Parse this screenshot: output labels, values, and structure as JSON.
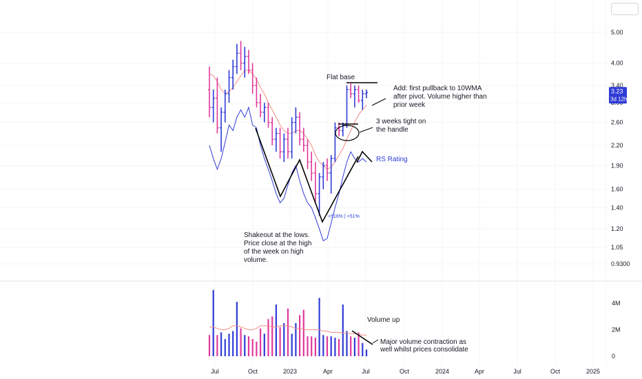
{
  "chart_data": [
    {
      "type": "candlestick",
      "title": "",
      "xlabel": "",
      "ylabel": "",
      "scale": "log",
      "ylim": [
        0.9,
        5.4
      ],
      "y_ticks": [
        "5.00",
        "4.00",
        "3.40",
        "3.00",
        "2.60",
        "2.20",
        "1.90",
        "1.60",
        "1.40",
        "1.20",
        "1.05",
        "0.9300"
      ],
      "x_ticks": [
        "Jul",
        "Oct",
        "2023",
        "Apr",
        "Jul",
        "Oct",
        "2024",
        "Apr",
        "Jul",
        "Oct",
        "2025"
      ],
      "last_price": {
        "value": "3.23",
        "countdown": "3d 12h",
        "color": "#2f3bd6"
      },
      "candles": [
        {
          "o": 3.3,
          "h": 3.9,
          "l": 2.7,
          "c": 2.9
        },
        {
          "o": 2.9,
          "h": 3.3,
          "l": 2.6,
          "c": 3.1
        },
        {
          "o": 3.1,
          "h": 3.6,
          "l": 2.4,
          "c": 2.5
        },
        {
          "o": 2.5,
          "h": 2.9,
          "l": 2.1,
          "c": 2.8
        },
        {
          "o": 2.8,
          "h": 3.3,
          "l": 2.6,
          "c": 3.2
        },
        {
          "o": 3.2,
          "h": 3.8,
          "l": 3.0,
          "c": 3.6
        },
        {
          "o": 3.6,
          "h": 4.1,
          "l": 3.3,
          "c": 3.9
        },
        {
          "o": 3.9,
          "h": 4.6,
          "l": 3.7,
          "c": 4.3
        },
        {
          "o": 4.3,
          "h": 4.7,
          "l": 3.8,
          "c": 4.0
        },
        {
          "o": 4.0,
          "h": 4.5,
          "l": 3.6,
          "c": 4.2
        },
        {
          "o": 4.2,
          "h": 4.4,
          "l": 3.7,
          "c": 3.8
        },
        {
          "o": 3.8,
          "h": 4.0,
          "l": 3.2,
          "c": 3.4
        },
        {
          "o": 3.4,
          "h": 3.6,
          "l": 2.9,
          "c": 3.0
        },
        {
          "o": 3.0,
          "h": 3.2,
          "l": 2.7,
          "c": 2.8
        },
        {
          "o": 2.8,
          "h": 3.0,
          "l": 2.6,
          "c": 2.9
        },
        {
          "o": 2.9,
          "h": 3.0,
          "l": 2.5,
          "c": 2.6
        },
        {
          "o": 2.6,
          "h": 2.7,
          "l": 2.2,
          "c": 2.3
        },
        {
          "o": 2.3,
          "h": 2.5,
          "l": 2.1,
          "c": 2.4
        },
        {
          "o": 2.4,
          "h": 2.5,
          "l": 2.0,
          "c": 2.1
        },
        {
          "o": 2.1,
          "h": 2.4,
          "l": 1.95,
          "c": 2.3
        },
        {
          "o": 2.3,
          "h": 2.5,
          "l": 2.0,
          "c": 2.1
        },
        {
          "o": 2.1,
          "h": 2.7,
          "l": 2.0,
          "c": 2.6
        },
        {
          "o": 2.6,
          "h": 2.9,
          "l": 2.4,
          "c": 2.7
        },
        {
          "o": 2.7,
          "h": 2.8,
          "l": 2.2,
          "c": 2.3
        },
        {
          "o": 2.3,
          "h": 2.5,
          "l": 2.1,
          "c": 2.2
        },
        {
          "o": 2.2,
          "h": 2.3,
          "l": 1.85,
          "c": 1.95
        },
        {
          "o": 1.95,
          "h": 2.1,
          "l": 1.7,
          "c": 1.8
        },
        {
          "o": 1.8,
          "h": 1.95,
          "l": 1.45,
          "c": 1.55
        },
        {
          "o": 1.55,
          "h": 1.8,
          "l": 1.32,
          "c": 1.75
        },
        {
          "o": 1.75,
          "h": 1.95,
          "l": 1.6,
          "c": 1.9
        },
        {
          "o": 1.9,
          "h": 2.0,
          "l": 1.7,
          "c": 1.8
        },
        {
          "o": 1.8,
          "h": 2.05,
          "l": 1.55,
          "c": 2.0
        },
        {
          "o": 2.0,
          "h": 2.6,
          "l": 1.95,
          "c": 2.5
        },
        {
          "o": 2.5,
          "h": 2.6,
          "l": 2.35,
          "c": 2.45
        },
        {
          "o": 2.45,
          "h": 2.6,
          "l": 2.35,
          "c": 2.55
        },
        {
          "o": 2.55,
          "h": 3.4,
          "l": 2.5,
          "c": 3.3
        },
        {
          "o": 3.3,
          "h": 3.45,
          "l": 3.1,
          "c": 3.2
        },
        {
          "o": 3.2,
          "h": 3.4,
          "l": 2.9,
          "c": 3.3
        },
        {
          "o": 3.3,
          "h": 3.4,
          "l": 3.0,
          "c": 3.05
        },
        {
          "o": 3.05,
          "h": 3.3,
          "l": 2.85,
          "c": 3.2
        },
        {
          "o": 3.2,
          "h": 3.3,
          "l": 3.1,
          "c": 3.23
        }
      ],
      "series": [
        {
          "values": [
            3.7,
            3.65,
            3.5,
            3.3,
            3.2,
            3.25,
            3.35,
            3.5,
            3.65,
            3.8,
            3.8,
            3.7,
            3.55,
            3.35,
            3.2,
            3.0,
            2.85,
            2.7,
            2.55,
            2.45,
            2.4,
            2.4,
            2.45,
            2.45,
            2.4,
            2.3,
            2.2,
            2.05,
            1.95,
            1.9,
            1.85,
            1.88,
            1.95,
            2.05,
            2.15,
            2.3,
            2.45,
            2.6,
            2.75,
            2.85,
            2.95
          ],
          "color": "#f28b82"
        },
        {
          "values": [
            2.2,
            2.0,
            1.85,
            2.0,
            2.25,
            2.55,
            2.45,
            2.7,
            2.85,
            2.7,
            2.9,
            2.55,
            2.5,
            2.2,
            2.0,
            1.85,
            1.7,
            1.55,
            1.45,
            1.5,
            1.65,
            1.8,
            1.9,
            1.7,
            1.55,
            1.45,
            1.4,
            1.3,
            1.2,
            1.1,
            1.12,
            1.25,
            1.4,
            1.55,
            1.75,
            1.95,
            2.1,
            2.0,
            1.95,
            2.0,
            1.95
          ],
          "color": "#2f3bd6"
        }
      ],
      "annotations": {
        "flat_base": "Flat base",
        "add_note": [
          "Add: first pullback to 10WMA",
          "after pivot. Volume higher than",
          "prior week"
        ],
        "tight_note": [
          "3 weeks tight on",
          "the handle"
        ],
        "rs_rating": "RS Rating",
        "pct_label": "+516% | +51%",
        "shakeout_note": [
          "Shakeout at the lows.",
          "Price close at the high",
          "of the week on high",
          "volume."
        ]
      }
    },
    {
      "type": "bar",
      "title": "",
      "xlabel": "",
      "ylabel": "",
      "ylim": [
        0,
        5.2
      ],
      "y_ticks": [
        "4M",
        "2M",
        "0"
      ],
      "values": [
        1.6,
        5.0,
        1.6,
        1.8,
        1.3,
        1.7,
        1.9,
        4.1,
        2.1,
        1.6,
        1.5,
        1.3,
        1.1,
        2.1,
        1.7,
        2.8,
        3.0,
        3.9,
        2.2,
        2.5,
        3.6,
        1.7,
        2.5,
        3.1,
        3.5,
        1.5,
        1.5,
        1.4,
        4.4,
        1.6,
        1.5,
        1.5,
        1.4,
        1.3,
        3.9,
        1.9,
        1.5,
        1.4,
        1.8,
        1.0,
        0.5
      ],
      "volume_ma": [
        2.2,
        2.2,
        2.1,
        2.0,
        2.0,
        2.1,
        2.3,
        2.3,
        2.2,
        2.1,
        2.0,
        2.0,
        2.1,
        2.3,
        2.3,
        2.3,
        2.2,
        2.2,
        2.3,
        2.3,
        2.3,
        2.2,
        2.1,
        2.1,
        2.0,
        2.0,
        2.0,
        2.0,
        2.0,
        1.9,
        1.9,
        1.8,
        1.8,
        1.8,
        1.75,
        1.75,
        1.7,
        1.7,
        1.65,
        1.6,
        1.6
      ],
      "annotations": {
        "volume_up": "Volume up",
        "contraction_note": [
          "Major volume contraction as",
          "well whilst prices consolidate"
        ]
      }
    }
  ],
  "colors": {
    "up": "#2f3bd6",
    "down": "#e0389b",
    "ma": "#f28b82",
    "rs": "#2f3bd6",
    "grid": "#e8e8e8"
  }
}
